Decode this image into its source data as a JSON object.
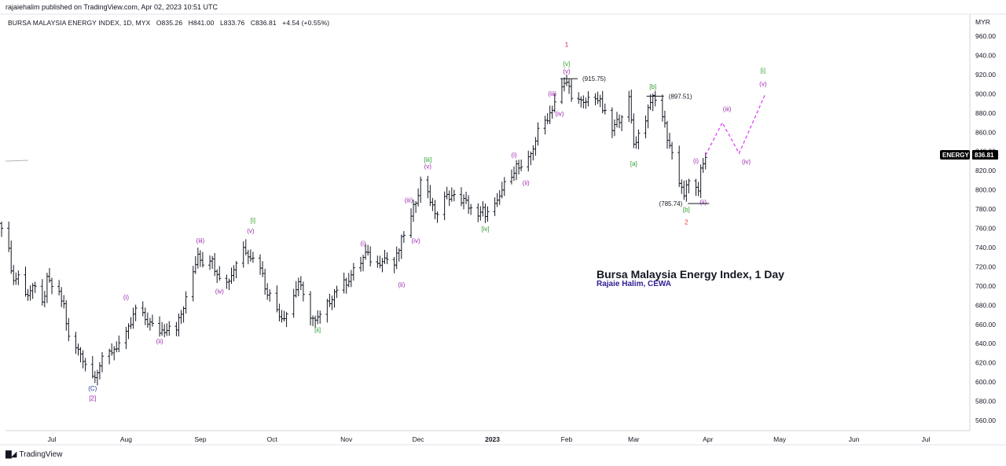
{
  "header": {
    "published": "rajaiehalim published on TradingView.com, Apr 02, 2023 10:51 UTC"
  },
  "symbol_line": {
    "name": "BURSA MALAYSIA ENERGY INDEX, 1D, MYX",
    "open": "O835.26",
    "high": "H841.00",
    "low": "L833.76",
    "close": "C836.81",
    "change": "+4.54 (+0.55%)"
  },
  "price_axis": {
    "unit": "MYR"
  },
  "price_tag": {
    "label": "ENERGY",
    "value": "836.81",
    "bg": "#000000",
    "fg": "#ffffff"
  },
  "footer": {
    "brand": "TradingView"
  },
  "chart_data": {
    "type": "ohlc",
    "title": "Bursa Malaysia Energy Index, 1 Day",
    "subtitle": "Rajaie Halim, CEWA",
    "ylabel": "MYR",
    "ylim": [
      548,
      970
    ],
    "yticks": [
      560,
      580,
      600,
      620,
      640,
      660,
      680,
      700,
      720,
      740,
      760,
      780,
      800,
      820,
      840,
      860,
      880,
      900,
      920,
      940,
      960
    ],
    "xticks": [
      "Jul",
      "Aug",
      "Sep",
      "Oct",
      "Nov",
      "Dec",
      "2023",
      "Feb",
      "Mar",
      "Apr",
      "May",
      "Jun",
      "Jul"
    ],
    "xtick_dates": [
      "2022-07-01",
      "2022-08-01",
      "2022-09-01",
      "2022-10-01",
      "2022-11-01",
      "2022-12-01",
      "2023-01-01",
      "2023-02-01",
      "2023-03-01",
      "2023-04-01",
      "2023-05-01",
      "2023-06-01",
      "2023-07-01"
    ],
    "bar_color": "#131722",
    "path": [
      [
        "2022-06-10",
        765
      ],
      [
        "2022-06-13",
        735
      ],
      [
        "2022-06-15",
        705
      ],
      [
        "2022-06-17",
        712
      ],
      [
        "2022-06-20",
        690
      ],
      [
        "2022-06-23",
        700
      ],
      [
        "2022-06-27",
        680
      ],
      [
        "2022-06-29",
        705
      ],
      [
        "2022-07-01",
        700
      ],
      [
        "2022-07-04",
        690
      ],
      [
        "2022-07-06",
        680
      ],
      [
        "2022-07-08",
        645
      ],
      [
        "2022-07-11",
        635
      ],
      [
        "2022-07-13",
        630
      ],
      [
        "2022-07-15",
        620
      ],
      [
        "2022-07-18",
        606
      ],
      [
        "2022-07-20",
        613
      ],
      [
        "2022-07-22",
        622
      ],
      [
        "2022-07-25",
        630
      ],
      [
        "2022-07-27",
        635
      ],
      [
        "2022-07-29",
        640
      ],
      [
        "2022-08-01",
        648
      ],
      [
        "2022-08-03",
        660
      ],
      [
        "2022-08-05",
        676
      ],
      [
        "2022-08-08",
        668
      ],
      [
        "2022-08-10",
        663
      ],
      [
        "2022-08-12",
        658
      ],
      [
        "2022-08-15",
        653
      ],
      [
        "2022-08-17",
        655
      ],
      [
        "2022-08-19",
        660
      ],
      [
        "2022-08-22",
        658
      ],
      [
        "2022-08-24",
        670
      ],
      [
        "2022-08-26",
        685
      ],
      [
        "2022-08-29",
        715
      ],
      [
        "2022-08-31",
        735
      ],
      [
        "2022-09-02",
        725
      ],
      [
        "2022-09-05",
        730
      ],
      [
        "2022-09-07",
        720
      ],
      [
        "2022-09-09",
        712
      ],
      [
        "2022-09-12",
        703
      ],
      [
        "2022-09-14",
        712
      ],
      [
        "2022-09-16",
        725
      ],
      [
        "2022-09-19",
        740
      ],
      [
        "2022-09-21",
        735
      ],
      [
        "2022-09-23",
        728
      ],
      [
        "2022-09-26",
        722
      ],
      [
        "2022-09-28",
        700
      ],
      [
        "2022-09-30",
        690
      ],
      [
        "2022-10-03",
        676
      ],
      [
        "2022-10-05",
        668
      ],
      [
        "2022-10-07",
        672
      ],
      [
        "2022-10-10",
        690
      ],
      [
        "2022-10-12",
        705
      ],
      [
        "2022-10-14",
        688
      ],
      [
        "2022-10-17",
        670
      ],
      [
        "2022-10-19",
        662
      ],
      [
        "2022-10-21",
        668
      ],
      [
        "2022-10-24",
        680
      ],
      [
        "2022-10-26",
        690
      ],
      [
        "2022-10-28",
        698
      ],
      [
        "2022-10-31",
        702
      ],
      [
        "2022-11-02",
        708
      ],
      [
        "2022-11-04",
        715
      ],
      [
        "2022-11-07",
        725
      ],
      [
        "2022-11-09",
        733
      ],
      [
        "2022-11-11",
        728
      ],
      [
        "2022-11-14",
        722
      ],
      [
        "2022-11-16",
        730
      ],
      [
        "2022-11-18",
        728
      ],
      [
        "2022-11-21",
        722
      ],
      [
        "2022-11-23",
        738
      ],
      [
        "2022-11-25",
        755
      ],
      [
        "2022-11-28",
        770
      ],
      [
        "2022-11-30",
        790
      ],
      [
        "2022-12-02",
        808
      ],
      [
        "2022-12-05",
        800
      ],
      [
        "2022-12-07",
        780
      ],
      [
        "2022-12-09",
        775
      ],
      [
        "2022-12-12",
        790
      ],
      [
        "2022-12-14",
        795
      ],
      [
        "2022-12-16",
        792
      ],
      [
        "2022-12-19",
        790
      ],
      [
        "2022-12-21",
        786
      ],
      [
        "2022-12-23",
        782
      ],
      [
        "2022-12-26",
        770
      ],
      [
        "2022-12-28",
        778
      ],
      [
        "2022-12-30",
        775
      ],
      [
        "2023-01-03",
        785
      ],
      [
        "2023-01-05",
        800
      ],
      [
        "2023-01-09",
        818
      ],
      [
        "2023-01-11",
        825
      ],
      [
        "2023-01-13",
        820
      ],
      [
        "2023-01-16",
        830
      ],
      [
        "2023-01-18",
        845
      ],
      [
        "2023-01-20",
        860
      ],
      [
        "2023-01-25",
        880
      ],
      [
        "2023-01-27",
        892
      ],
      [
        "2023-01-30",
        905
      ],
      [
        "2023-02-01",
        912
      ],
      [
        "2023-02-03",
        900
      ],
      [
        "2023-02-06",
        892
      ],
      [
        "2023-02-08",
        888
      ],
      [
        "2023-02-10",
        895
      ],
      [
        "2023-02-13",
        898
      ],
      [
        "2023-02-15",
        890
      ],
      [
        "2023-02-17",
        878
      ],
      [
        "2023-02-20",
        862
      ],
      [
        "2023-02-22",
        870
      ],
      [
        "2023-02-24",
        880
      ],
      [
        "2023-02-27",
        893
      ],
      [
        "2023-03-01",
        848
      ],
      [
        "2023-03-03",
        858
      ],
      [
        "2023-03-06",
        875
      ],
      [
        "2023-03-08",
        895
      ],
      [
        "2023-03-10",
        892
      ],
      [
        "2023-03-13",
        878
      ],
      [
        "2023-03-15",
        855
      ],
      [
        "2023-03-17",
        838
      ],
      [
        "2023-03-20",
        810
      ],
      [
        "2023-03-22",
        795
      ],
      [
        "2023-03-24",
        808
      ],
      [
        "2023-03-27",
        805
      ],
      [
        "2023-03-28",
        795
      ],
      [
        "2023-03-29",
        818
      ],
      [
        "2023-03-30",
        828
      ],
      [
        "2023-03-31",
        836
      ]
    ],
    "projection": {
      "style": "dashed",
      "color": "#e040fb",
      "points": [
        [
          "2023-03-31",
          836
        ],
        [
          "2023-04-07",
          870
        ],
        [
          "2023-04-14",
          838
        ],
        [
          "2023-04-25",
          900
        ]
      ]
    },
    "annotations": [
      {
        "date": "2022-07-18",
        "price": 591,
        "text": "(C)",
        "color": "#1e3aa0"
      },
      {
        "date": "2022-07-18",
        "price": 581,
        "text": "[2]",
        "color": "#8e24aa"
      },
      {
        "date": "2022-08-01",
        "price": 686,
        "text": "(i)",
        "color": "#9c27b0"
      },
      {
        "date": "2022-08-15",
        "price": 640,
        "text": "(ii)",
        "color": "#9c27b0"
      },
      {
        "date": "2022-09-01",
        "price": 745,
        "text": "(iii)",
        "color": "#9c27b0"
      },
      {
        "date": "2022-09-09",
        "price": 692,
        "text": "(iv)",
        "color": "#9c27b0"
      },
      {
        "date": "2022-09-22",
        "price": 755,
        "text": "(v)",
        "color": "#9c27b0"
      },
      {
        "date": "2022-09-23",
        "price": 766,
        "text": "[i]",
        "color": "#2e9e2e"
      },
      {
        "date": "2022-10-20",
        "price": 652,
        "text": "[ii]",
        "color": "#2e9e2e"
      },
      {
        "date": "2022-11-08",
        "price": 742,
        "text": "(i)",
        "color": "#9c27b0"
      },
      {
        "date": "2022-11-24",
        "price": 699,
        "text": "(ii)",
        "color": "#9c27b0"
      },
      {
        "date": "2022-11-27",
        "price": 787,
        "text": "(iii)",
        "color": "#9c27b0"
      },
      {
        "date": "2022-11-30",
        "price": 745,
        "text": "(iv)",
        "color": "#9c27b0"
      },
      {
        "date": "2022-12-05",
        "price": 822,
        "text": "(v)",
        "color": "#9c27b0"
      },
      {
        "date": "2022-12-05",
        "price": 829,
        "text": "[iii]",
        "color": "#2e9e2e"
      },
      {
        "date": "2022-12-29",
        "price": 757,
        "text": "[iv]",
        "color": "#2e9e2e"
      },
      {
        "date": "2023-01-10",
        "price": 834,
        "text": "(i)",
        "color": "#9c27b0"
      },
      {
        "date": "2023-01-15",
        "price": 805,
        "text": "(ii)",
        "color": "#9c27b0"
      },
      {
        "date": "2023-01-26",
        "price": 898,
        "text": "(iii)",
        "color": "#9c27b0"
      },
      {
        "date": "2023-01-29",
        "price": 877,
        "text": "(iv)",
        "color": "#9c27b0"
      },
      {
        "date": "2023-02-01",
        "price": 921,
        "text": "(v)",
        "color": "#9c27b0"
      },
      {
        "date": "2023-02-01",
        "price": 929,
        "text": "[v]",
        "color": "#2e9e2e"
      },
      {
        "date": "2023-02-01",
        "price": 949,
        "text": "1",
        "color": "#d81b60"
      },
      {
        "date": "2023-03-01",
        "price": 825,
        "text": "[a]",
        "color": "#2e9e2e"
      },
      {
        "date": "2023-03-09",
        "price": 905,
        "text": "[b]",
        "color": "#2e9e2e"
      },
      {
        "date": "2023-03-23",
        "price": 777,
        "text": "[b]",
        "color": "#2e9e2e"
      },
      {
        "date": "2023-03-23",
        "price": 764,
        "text": "2",
        "color": "#e53935"
      },
      {
        "date": "2023-03-27",
        "price": 828,
        "text": "(i)",
        "color": "#9c27b0"
      },
      {
        "date": "2023-03-30",
        "price": 785,
        "text": "(ii)",
        "color": "#9c27b0"
      },
      {
        "date": "2023-04-09",
        "price": 882,
        "text": "(iii)",
        "color": "#9c27b0"
      },
      {
        "date": "2023-04-17",
        "price": 827,
        "text": "(iv)",
        "color": "#9c27b0"
      },
      {
        "date": "2023-04-24",
        "price": 908,
        "text": "(v)",
        "color": "#9c27b0"
      },
      {
        "date": "2023-04-24",
        "price": 922,
        "text": "[i]",
        "color": "#2e9e2e"
      }
    ],
    "level_labels": [
      {
        "date": "2023-02-01",
        "price": 915.75,
        "text": "(915.75)"
      },
      {
        "date": "2023-03-09",
        "price": 897.51,
        "text": "(897.51)"
      },
      {
        "date": "2023-03-22",
        "price": 785.74,
        "text": "(785.74)"
      }
    ]
  }
}
